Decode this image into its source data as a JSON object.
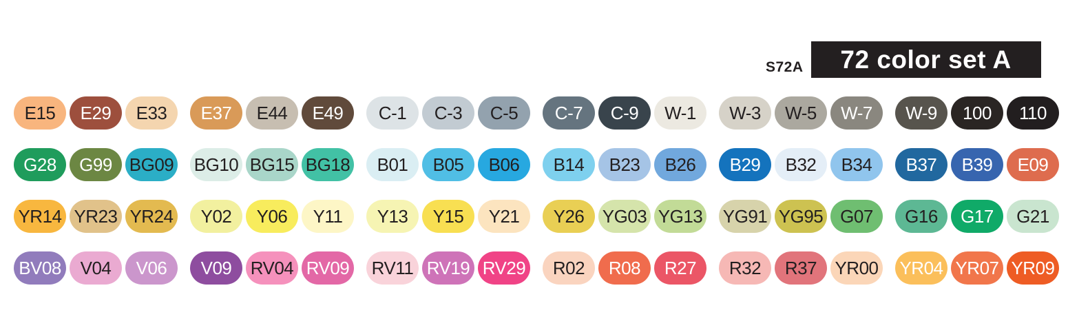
{
  "header": {
    "set_code": "S72A",
    "set_title": "72 color set A",
    "title_box_bg": "#231F20",
    "title_box_text": "#FFFFFF"
  },
  "palette": {
    "label_colors": {
      "dark": "#231F20",
      "light": "#FFFFFF"
    },
    "rows": [
      [
        {
          "code": "E15",
          "fill": "#F8B57E",
          "label": "dark"
        },
        {
          "code": "E29",
          "fill": "#9D4F3D",
          "label": "light"
        },
        {
          "code": "E33",
          "fill": "#F4D5AF",
          "label": "dark"
        },
        {
          "code": "E37",
          "fill": "#D99A58",
          "label": "light"
        },
        {
          "code": "E44",
          "fill": "#C7BEB1",
          "label": "dark"
        },
        {
          "code": "E49",
          "fill": "#604A3B",
          "label": "light"
        },
        {
          "code": "C-1",
          "fill": "#DDE3E6",
          "label": "dark"
        },
        {
          "code": "C-3",
          "fill": "#C2CBD2",
          "label": "dark"
        },
        {
          "code": "C-5",
          "fill": "#93A2AE",
          "label": "dark"
        },
        {
          "code": "C-7",
          "fill": "#65747F",
          "label": "light"
        },
        {
          "code": "C-9",
          "fill": "#39444C",
          "label": "light"
        },
        {
          "code": "W-1",
          "fill": "#ECE9E1",
          "label": "dark"
        },
        {
          "code": "W-3",
          "fill": "#D6D2C8",
          "label": "dark"
        },
        {
          "code": "W-5",
          "fill": "#ABA89F",
          "label": "dark"
        },
        {
          "code": "W-7",
          "fill": "#8A877F",
          "label": "light"
        },
        {
          "code": "W-9",
          "fill": "#57544D",
          "label": "light"
        },
        {
          "code": "100",
          "fill": "#2A2523",
          "label": "light"
        },
        {
          "code": "110",
          "fill": "#221E1F",
          "label": "light"
        }
      ],
      [
        {
          "code": "G28",
          "fill": "#1F9C5C",
          "label": "light"
        },
        {
          "code": "G99",
          "fill": "#6C8743",
          "label": "light"
        },
        {
          "code": "BG09",
          "fill": "#2BAEC6",
          "label": "dark"
        },
        {
          "code": "BG10",
          "fill": "#DCEDE7",
          "label": "dark"
        },
        {
          "code": "BG15",
          "fill": "#A9D6C9",
          "label": "dark"
        },
        {
          "code": "BG18",
          "fill": "#42C1A5",
          "label": "dark"
        },
        {
          "code": "B01",
          "fill": "#DAEEF3",
          "label": "dark"
        },
        {
          "code": "B05",
          "fill": "#50BEE5",
          "label": "dark"
        },
        {
          "code": "B06",
          "fill": "#27A8E0",
          "label": "dark"
        },
        {
          "code": "B14",
          "fill": "#7ED0EE",
          "label": "dark"
        },
        {
          "code": "B23",
          "fill": "#A5C4E6",
          "label": "dark"
        },
        {
          "code": "B26",
          "fill": "#71A8DD",
          "label": "dark"
        },
        {
          "code": "B29",
          "fill": "#1473BD",
          "label": "light"
        },
        {
          "code": "B32",
          "fill": "#E4EEF7",
          "label": "dark"
        },
        {
          "code": "B34",
          "fill": "#90C5ED",
          "label": "dark"
        },
        {
          "code": "B37",
          "fill": "#21689F",
          "label": "light"
        },
        {
          "code": "B39",
          "fill": "#3765AF",
          "label": "light"
        },
        {
          "code": "E09",
          "fill": "#DE6C4E",
          "label": "light"
        }
      ],
      [
        {
          "code": "YR14",
          "fill": "#F8B73F",
          "label": "dark"
        },
        {
          "code": "YR23",
          "fill": "#E1C28A",
          "label": "dark"
        },
        {
          "code": "YR24",
          "fill": "#E3BA50",
          "label": "dark"
        },
        {
          "code": "Y02",
          "fill": "#F2F09F",
          "label": "dark"
        },
        {
          "code": "Y06",
          "fill": "#F8EC5D",
          "label": "dark"
        },
        {
          "code": "Y11",
          "fill": "#FDF6C6",
          "label": "dark"
        },
        {
          "code": "Y13",
          "fill": "#F6F4B3",
          "label": "dark"
        },
        {
          "code": "Y15",
          "fill": "#F8DF52",
          "label": "dark"
        },
        {
          "code": "Y21",
          "fill": "#FCE4BF",
          "label": "dark"
        },
        {
          "code": "Y26",
          "fill": "#E9CF54",
          "label": "dark"
        },
        {
          "code": "YG03",
          "fill": "#D5E4AB",
          "label": "dark"
        },
        {
          "code": "YG13",
          "fill": "#C2DB97",
          "label": "dark"
        },
        {
          "code": "YG91",
          "fill": "#D7D3AB",
          "label": "dark"
        },
        {
          "code": "YG95",
          "fill": "#CDC251",
          "label": "dark"
        },
        {
          "code": "G07",
          "fill": "#6FBE71",
          "label": "dark"
        },
        {
          "code": "G16",
          "fill": "#5DB894",
          "label": "dark"
        },
        {
          "code": "G17",
          "fill": "#10AA68",
          "label": "light"
        },
        {
          "code": "G21",
          "fill": "#C9E5CF",
          "label": "dark"
        }
      ],
      [
        {
          "code": "BV08",
          "fill": "#917CBC",
          "label": "light"
        },
        {
          "code": "V04",
          "fill": "#EAAAD1",
          "label": "dark"
        },
        {
          "code": "V06",
          "fill": "#CB96CC",
          "label": "light"
        },
        {
          "code": "V09",
          "fill": "#8E4D9F",
          "label": "light"
        },
        {
          "code": "RV04",
          "fill": "#F591BC",
          "label": "dark"
        },
        {
          "code": "RV09",
          "fill": "#E368A6",
          "label": "light"
        },
        {
          "code": "RV11",
          "fill": "#F9D3DA",
          "label": "dark"
        },
        {
          "code": "RV19",
          "fill": "#CE73B8",
          "label": "light"
        },
        {
          "code": "RV29",
          "fill": "#F04386",
          "label": "light"
        },
        {
          "code": "R02",
          "fill": "#FAD4BF",
          "label": "dark"
        },
        {
          "code": "R08",
          "fill": "#F06C4D",
          "label": "light"
        },
        {
          "code": "R27",
          "fill": "#EB5666",
          "label": "light"
        },
        {
          "code": "R32",
          "fill": "#F6B8B5",
          "label": "dark"
        },
        {
          "code": "R37",
          "fill": "#E1747B",
          "label": "dark"
        },
        {
          "code": "YR00",
          "fill": "#FBD6B8",
          "label": "dark"
        },
        {
          "code": "YR04",
          "fill": "#FBBF5B",
          "label": "light"
        },
        {
          "code": "YR07",
          "fill": "#F1764B",
          "label": "light"
        },
        {
          "code": "YR09",
          "fill": "#EE5C24",
          "label": "light"
        }
      ]
    ]
  }
}
